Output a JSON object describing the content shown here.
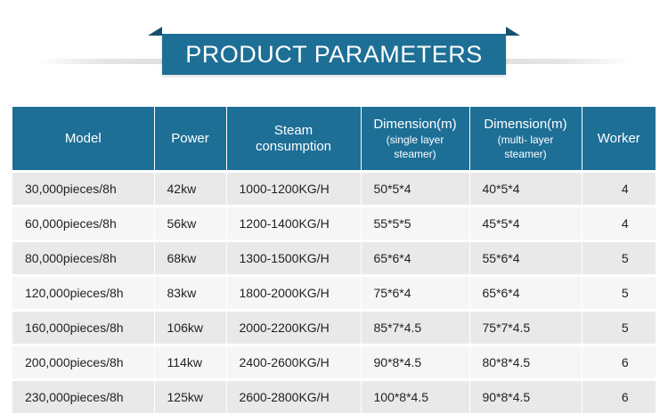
{
  "banner": {
    "title": "PRODUCT PARAMETERS"
  },
  "table": {
    "headers": {
      "model": "Model",
      "power": "Power",
      "steam_line1": "Steam",
      "steam_line2": "consumption",
      "dim_single_main": "Dimension(m)",
      "dim_single_sub1": "(single layer",
      "dim_single_sub2": "steamer)",
      "dim_multi_main": "Dimension(m)",
      "dim_multi_sub1": "(multi- layer",
      "dim_multi_sub2": "steamer)",
      "worker": "Worker"
    },
    "rows": [
      {
        "model": "30,000pieces/8h",
        "power": "42kw",
        "steam": "1000-1200KG/H",
        "dim_single": "50*5*4",
        "dim_multi": "40*5*4",
        "worker": "4"
      },
      {
        "model": "60,000pieces/8h",
        "power": "56kw",
        "steam": "1200-1400KG/H",
        "dim_single": "55*5*5",
        "dim_multi": "45*5*4",
        "worker": "4"
      },
      {
        "model": "80,000pieces/8h",
        "power": "68kw",
        "steam": "1300-1500KG/H",
        "dim_single": "65*6*4",
        "dim_multi": "55*6*4",
        "worker": "5"
      },
      {
        "model": "120,000pieces/8h",
        "power": "83kw",
        "steam": "1800-2000KG/H",
        "dim_single": "75*6*4",
        "dim_multi": "65*6*4",
        "worker": "5"
      },
      {
        "model": "160,000pieces/8h",
        "power": "106kw",
        "steam": "2000-2200KG/H",
        "dim_single": "85*7*4.5",
        "dim_multi": "75*7*4.5",
        "worker": "5"
      },
      {
        "model": "200,000pieces/8h",
        "power": "114kw",
        "steam": "2400-2600KG/H",
        "dim_single": "90*8*4.5",
        "dim_multi": "80*8*4.5",
        "worker": "6"
      },
      {
        "model": "230,000pieces/8h",
        "power": "125kw",
        "steam": "2600-2800KG/H",
        "dim_single": "100*8*4.5",
        "dim_multi": "90*8*4.5",
        "worker": "6"
      }
    ]
  },
  "colors": {
    "header_bg": "#1d6f96",
    "row_odd": "#e9e9e9",
    "row_even": "#f6f6f6"
  }
}
